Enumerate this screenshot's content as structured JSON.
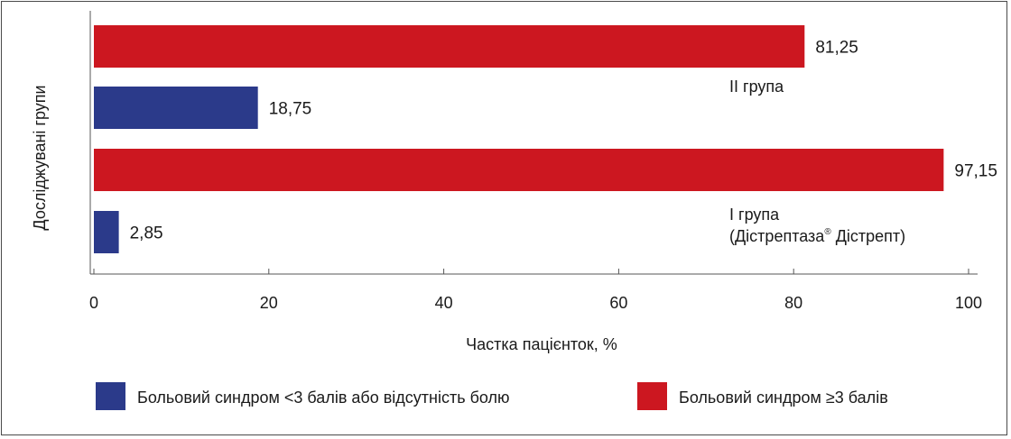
{
  "chart_data": {
    "type": "bar",
    "orientation": "horizontal",
    "xlabel": "Частка пацієнток, %",
    "ylabel": "Досліджувані групи",
    "xlim": [
      0,
      100
    ],
    "xticks": [
      "0",
      "20",
      "40",
      "60",
      "80",
      "100"
    ],
    "colors": {
      "pain_ge3": "#cc1720",
      "pain_lt3": "#2b3a8a"
    },
    "legend": {
      "placement": "bottom",
      "items": [
        {
          "label": "Больовий синдром <3 балів або відсутність болю",
          "color": "#2b3a8a"
        },
        {
          "label": "Больовий синдром ≥3 балів",
          "color": "#cc1720"
        }
      ]
    },
    "bars": [
      {
        "group": "II група",
        "series": "Больовий синдром ≥3 балів",
        "value": 81.25,
        "label": "81,25",
        "color": "#cc1720"
      },
      {
        "group": "II група",
        "series": "Больовий синдром <3 балів або відсутність болю",
        "value": 18.75,
        "label": "18,75",
        "color": "#2b3a8a"
      },
      {
        "group": "I група",
        "series": "Больовий синдром ≥3 балів",
        "value": 97.15,
        "label": "97,15",
        "color": "#cc1720"
      },
      {
        "group": "I група",
        "series": "Больовий синдром <3 балів або відсутність болю",
        "value": 2.85,
        "label": "2,85",
        "color": "#2b3a8a"
      }
    ],
    "group_labels": [
      {
        "line1": "II група",
        "line2": ""
      },
      {
        "line1": "I група",
        "line2": "(Дістрептаза",
        "sup": "®",
        "line2_end": " Дістрепт)"
      }
    ],
    "grid": false
  }
}
